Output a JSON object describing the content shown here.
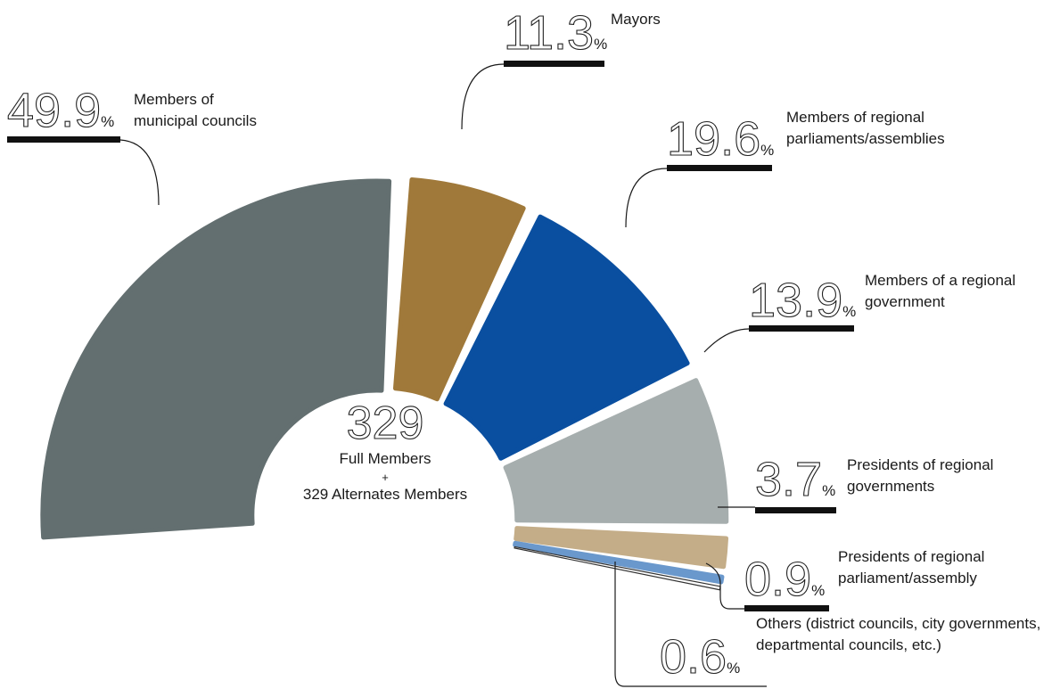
{
  "chart_data": {
    "type": "pie",
    "unit": "%",
    "center_value": 329,
    "center_lines": [
      "Full Members",
      "+",
      "329 Alternates Members"
    ],
    "categories": [
      [
        "Members of",
        "municipal councils"
      ],
      [
        "Mayors"
      ],
      [
        "Members of regional",
        "parliaments/assemblies"
      ],
      [
        "Members of a regional",
        "government"
      ],
      [
        "Presidents of regional",
        "governments"
      ],
      [
        "Presidents of regional",
        "parliament/assembly"
      ],
      [
        "Others (district councils, city governments,",
        "departmental councils, etc.)"
      ]
    ],
    "values": [
      49.9,
      11.3,
      19.6,
      13.9,
      3.7,
      0.9,
      0.6
    ],
    "colors": [
      "#636f70",
      "#a0793a",
      "#0a4fa0",
      "#a6aeae",
      "#c4ad88",
      "#6a98cc",
      "#ffffff"
    ]
  }
}
